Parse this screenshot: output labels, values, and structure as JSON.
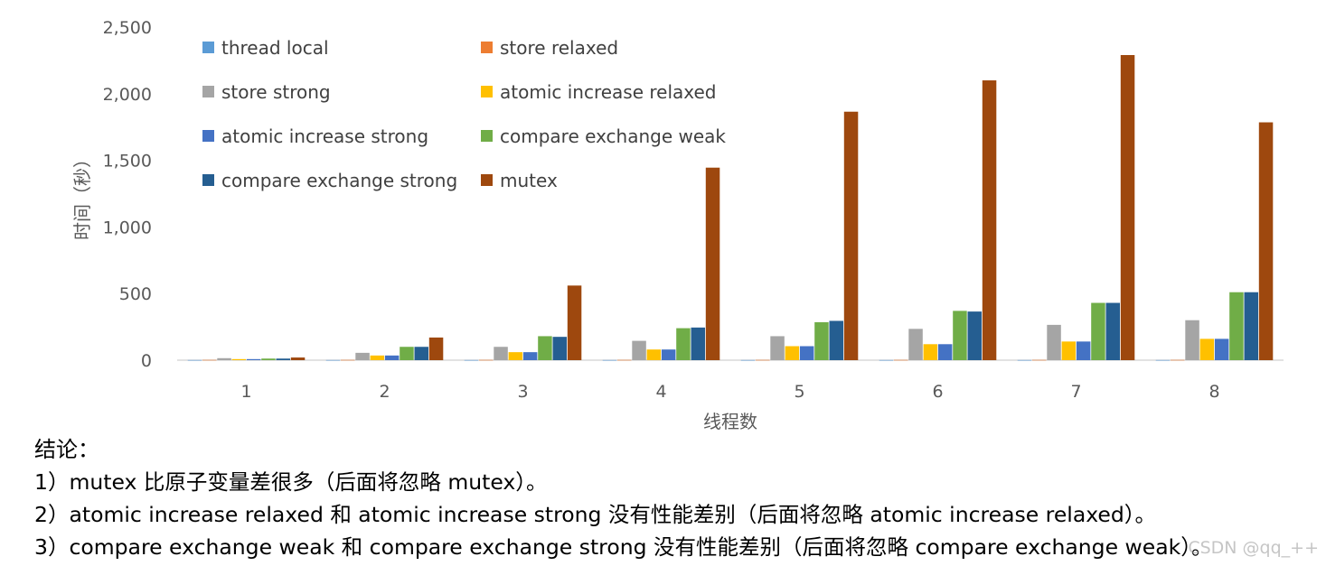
{
  "chart_data": {
    "type": "bar",
    "categories": [
      "1",
      "2",
      "3",
      "4",
      "5",
      "6",
      "7",
      "8"
    ],
    "xlabel": "线程数",
    "ylabel": "时间（秒）",
    "ylim": [
      0,
      2500
    ],
    "yticks": [
      "0",
      "500",
      "1,000",
      "1,500",
      "2,000",
      "2,500"
    ],
    "ytick_values": [
      0,
      500,
      1000,
      1500,
      2000,
      2500
    ],
    "grid": false,
    "legend_position": "top-left",
    "series": [
      {
        "name": "thread local",
        "color": "#5B9BD5",
        "values": [
          1,
          1,
          1,
          1,
          1,
          1,
          1,
          1
        ]
      },
      {
        "name": "store relaxed",
        "color": "#ED7D31",
        "values": [
          2,
          2,
          2,
          2,
          2,
          2,
          2,
          2
        ]
      },
      {
        "name": "store strong",
        "color": "#A5A5A5",
        "values": [
          15,
          55,
          100,
          145,
          180,
          235,
          265,
          300
        ]
      },
      {
        "name": "atomic increase relaxed",
        "color": "#FFC000",
        "values": [
          8,
          35,
          60,
          80,
          105,
          120,
          140,
          160
        ]
      },
      {
        "name": "atomic increase strong",
        "color": "#4472C4",
        "values": [
          8,
          35,
          60,
          80,
          105,
          120,
          140,
          160
        ]
      },
      {
        "name": "compare exchange weak",
        "color": "#70AD47",
        "values": [
          12,
          100,
          180,
          240,
          285,
          370,
          430,
          510
        ]
      },
      {
        "name": "compare exchange strong",
        "color": "#255E91",
        "values": [
          12,
          100,
          175,
          245,
          295,
          365,
          430,
          510
        ]
      },
      {
        "name": "mutex",
        "color": "#9E480E",
        "values": [
          20,
          170,
          560,
          1445,
          1865,
          2100,
          2290,
          1785
        ]
      }
    ]
  },
  "conclusion": {
    "heading": "结论：",
    "points": [
      "1）mutex 比原子变量差很多（后面将忽略 mutex）。",
      "2）atomic increase relaxed 和 atomic increase strong 没有性能差别（后面将忽略 atomic increase relaxed）。",
      "3）compare exchange weak 和 compare exchange strong 没有性能差别（后面将忽略 compare exchange weak）。"
    ]
  },
  "watermark": "CSDN @qq_++"
}
